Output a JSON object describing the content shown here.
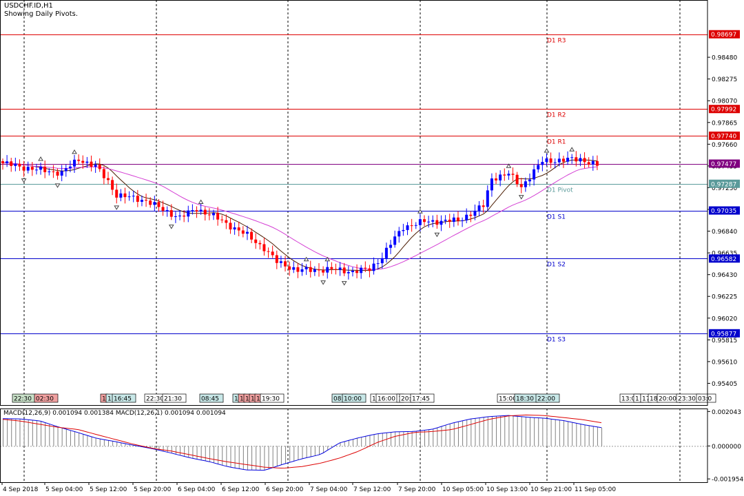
{
  "header": {
    "symbol": "USDCHF.ID,H1",
    "subtitle": "Showing Daily Pivots."
  },
  "colors": {
    "bull": "#0000ff",
    "bear": "#ff0000",
    "ma_fast": "#4a1a00",
    "ma_slow": "#d43fd4",
    "resistance": "#dd0000",
    "support": "#0000cc",
    "pivot": "#5a9a9a",
    "current": "#800080",
    "macd_line": "#0000dd",
    "signal_line": "#dd0000",
    "histogram": "#808080"
  },
  "chart_data": [
    {
      "type": "candlestick",
      "title": "USDCHF.ID,H1",
      "subtitle": "Showing Daily Pivots.",
      "ylim": [
        0.952,
        0.9902
      ],
      "y_ticks": [
        "0.98480",
        "0.98275",
        "0.98070",
        "0.97865",
        "0.97660",
        "0.97455",
        "0.97250",
        "0.97045",
        "0.96840",
        "0.96635",
        "0.96430",
        "0.96225",
        "0.96020",
        "0.95815",
        "0.95610",
        "0.95405"
      ],
      "pivots": [
        {
          "name": "D1 R3",
          "value": 0.98697,
          "label": "0.98697",
          "kind": "resistance"
        },
        {
          "name": "D1 R2",
          "value": 0.97992,
          "label": "0.97992",
          "kind": "resistance"
        },
        {
          "name": "D1 R1",
          "value": 0.9774,
          "label": "0.97740",
          "kind": "resistance"
        },
        {
          "name": "D1 Pivot",
          "value": 0.97287,
          "label": "0.97287",
          "kind": "pivot"
        },
        {
          "name": "D1 S1",
          "value": 0.97035,
          "label": "0.97035",
          "kind": "support"
        },
        {
          "name": "D1 S2",
          "value": 0.96582,
          "label": "0.96582",
          "kind": "support"
        },
        {
          "name": "D1 S3",
          "value": 0.95877,
          "label": "0.95877",
          "kind": "support"
        }
      ],
      "current_price": {
        "value": 0.97477,
        "label": "0.97477"
      },
      "close_keyframes": [
        [
          0,
          0.9748
        ],
        [
          8,
          0.9742
        ],
        [
          14,
          0.9739
        ],
        [
          18,
          0.9752
        ],
        [
          22,
          0.9745
        ],
        [
          25,
          0.9731
        ],
        [
          27,
          0.9718
        ],
        [
          34,
          0.9713
        ],
        [
          38,
          0.9704
        ],
        [
          42,
          0.9697
        ],
        [
          46,
          0.9705
        ],
        [
          50,
          0.9698
        ],
        [
          54,
          0.9689
        ],
        [
          58,
          0.968
        ],
        [
          62,
          0.9668
        ],
        [
          65,
          0.9655
        ],
        [
          70,
          0.9647
        ],
        [
          78,
          0.9648
        ],
        [
          83,
          0.9646
        ],
        [
          87,
          0.9648
        ],
        [
          90,
          0.966
        ],
        [
          92,
          0.9672
        ],
        [
          95,
          0.9688
        ],
        [
          100,
          0.9693
        ],
        [
          108,
          0.9694
        ],
        [
          112,
          0.9703
        ],
        [
          114,
          0.9708
        ],
        [
          116,
          0.9734
        ],
        [
          120,
          0.9738
        ],
        [
          123,
          0.9726
        ],
        [
          128,
          0.975
        ],
        [
          132,
          0.9751
        ],
        [
          137,
          0.9752
        ],
        [
          141,
          0.9746
        ]
      ],
      "x_ticks": [
        "4 Sep 2018",
        "5 Sep 04:00",
        "5 Sep 12:00",
        "5 Sep 20:00",
        "6 Sep 04:00",
        "6 Sep 12:00",
        "6 Sep 20:00",
        "7 Sep 04:00",
        "7 Sep 12:00",
        "7 Sep 20:00",
        "10 Sep 05:00",
        "10 Sep 13:00",
        "10 Sep 21:00",
        "11 Sep 05:00"
      ],
      "session_labels": [
        {
          "text": "22:30",
          "color": "#c8e0c8"
        },
        {
          "text": "02:30",
          "color": "#f0a0a0"
        },
        {
          "text": "1",
          "color": "#f0a0a0"
        },
        {
          "text": "1",
          "color": "#c8e8e8"
        },
        {
          "text": "16:45",
          "color": "#c8e8e8"
        },
        {
          "text": "22:30",
          "color": "#ffffff"
        },
        {
          "text": "21:30",
          "color": "#ffffff"
        },
        {
          "text": "08:45",
          "color": "#c8e8e8"
        },
        {
          "text": "1",
          "color": "#c8e8e8"
        },
        {
          "text": "1",
          "color": "#f0a0a0"
        },
        {
          "text": "1",
          "color": "#f0a0a0"
        },
        {
          "text": "1",
          "color": "#f0a0a0"
        },
        {
          "text": "1",
          "color": "#f0a0a0"
        },
        {
          "text": "19:30",
          "color": "#ffffff"
        },
        {
          "text": "08:",
          "color": "#c8e8e8"
        },
        {
          "text": "10:00",
          "color": "#c8e8e8"
        },
        {
          "text": "1",
          "color": "#ffffff"
        },
        {
          "text": "16:00",
          "color": "#ffffff"
        },
        {
          "text": "1",
          "color": "#ffffff"
        },
        {
          "text": "20:",
          "color": "#ffffff"
        },
        {
          "text": "17:45",
          "color": "#ffffff"
        },
        {
          "text": "15:00",
          "color": "#ffffff"
        },
        {
          "text": "18:30",
          "color": "#c8e8e8"
        },
        {
          "text": "22:00",
          "color": "#c8e8e8"
        },
        {
          "text": "13:00",
          "color": "#ffffff"
        },
        {
          "text": "1",
          "color": "#ffffff"
        },
        {
          "text": "17",
          "color": "#ffffff"
        },
        {
          "text": "18",
          "color": "#ffffff"
        },
        {
          "text": "20:00",
          "color": "#ffffff"
        },
        {
          "text": "23:30",
          "color": "#ffffff"
        },
        {
          "text": "03:0",
          "color": "#ffffff"
        }
      ]
    },
    {
      "type": "line",
      "title": "MACD(12,26,9) 0.001094 0.001384 MACD(12,26,1) 0.001094 0.001094",
      "ylim": [
        -0.00215,
        0.00222
      ],
      "y_ticks": [
        "0.002043",
        "0.000000",
        "-0.001954"
      ],
      "series": [
        {
          "name": "MACD(12,26,9)",
          "role": "main",
          "values": [
            0.00162,
            0.0016,
            0.00148,
            0.00112,
            0.0008,
            0.00046,
            0.00026,
            4e-05,
            -0.00016,
            -0.00042,
            -0.0007,
            -0.00092,
            -0.00122,
            -0.00142,
            -0.00144,
            -0.00108,
            -0.00076,
            -0.0005,
            0.00018,
            0.00048,
            0.00072,
            0.00084,
            0.00086,
            0.001,
            0.00135,
            0.0016,
            0.00174,
            0.00181,
            0.00171,
            0.00164,
            0.0015,
            0.00127,
            0.00109
          ]
        },
        {
          "name": "MACD(12,26,9)",
          "role": "signal",
          "values": [
            0.00158,
            0.00147,
            0.00128,
            0.0011,
            0.00098,
            0.00068,
            0.00039,
            0.0001,
            -0.00014,
            -0.0003,
            -0.00052,
            -0.00074,
            -0.00094,
            -0.0011,
            -0.00126,
            -0.00132,
            -0.00122,
            -0.00102,
            -0.00072,
            -0.00032,
            0.0002,
            0.00058,
            0.0008,
            0.00086,
            0.00097,
            0.00127,
            0.00158,
            0.00178,
            0.00184,
            0.0018,
            0.00168,
            0.00156,
            0.00138
          ]
        }
      ]
    }
  ]
}
